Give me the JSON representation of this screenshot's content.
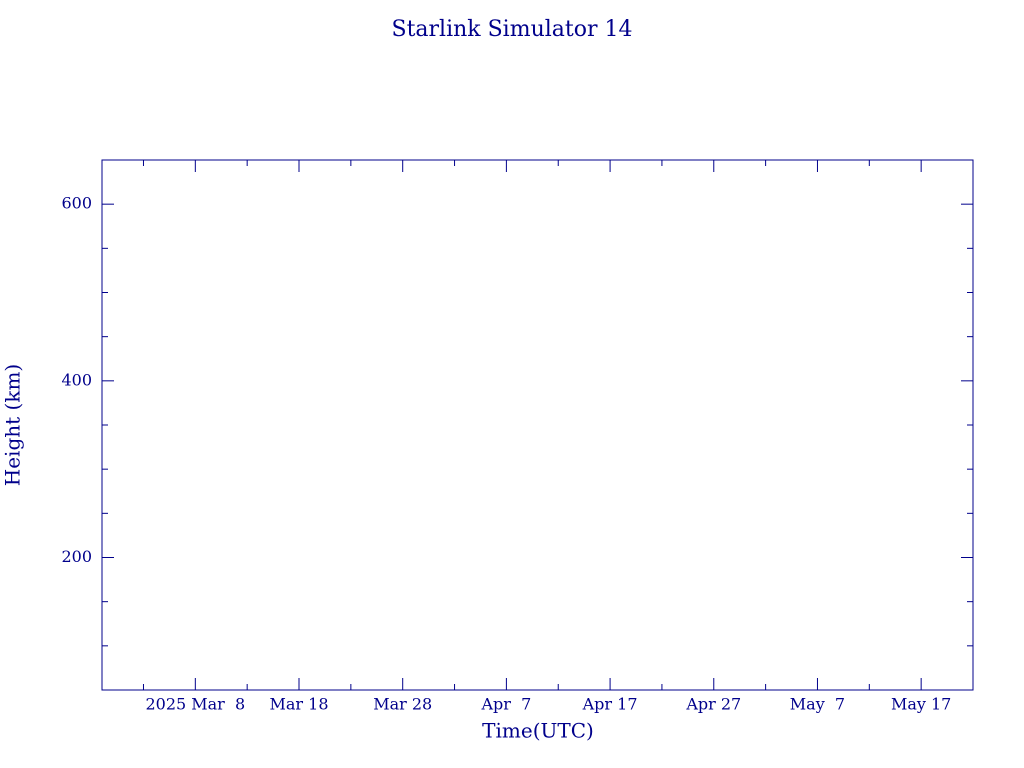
{
  "chart_data": {
    "type": "line",
    "title": "Starlink Simulator 14",
    "x_label": "Time(UTC)",
    "y_label": "Height (km)",
    "x": [],
    "series": [],
    "xlim": [
      "2025-02-27",
      "2025-05-22"
    ],
    "xticks": [
      {
        "value": "2025-03-08",
        "label": "2025 Mar  8"
      },
      {
        "value": "2025-03-18",
        "label": "Mar 18"
      },
      {
        "value": "2025-03-28",
        "label": "Mar 28"
      },
      {
        "value": "2025-04-07",
        "label": "Apr  7"
      },
      {
        "value": "2025-04-17",
        "label": "Apr 17"
      },
      {
        "value": "2025-04-27",
        "label": "Apr 27"
      },
      {
        "value": "2025-05-07",
        "label": "May  7"
      },
      {
        "value": "2025-05-17",
        "label": "May 17"
      }
    ],
    "xminorticks": [
      "2025-03-03",
      "2025-03-13",
      "2025-03-23",
      "2025-04-02",
      "2025-04-12",
      "2025-04-22",
      "2025-05-02",
      "2025-05-12"
    ],
    "ylim": [
      50,
      650
    ],
    "yticks": [
      200,
      400,
      600
    ],
    "yminorticks": [
      100,
      150,
      250,
      300,
      350,
      450,
      500,
      550
    ],
    "color": "#00008b",
    "grid": false
  }
}
